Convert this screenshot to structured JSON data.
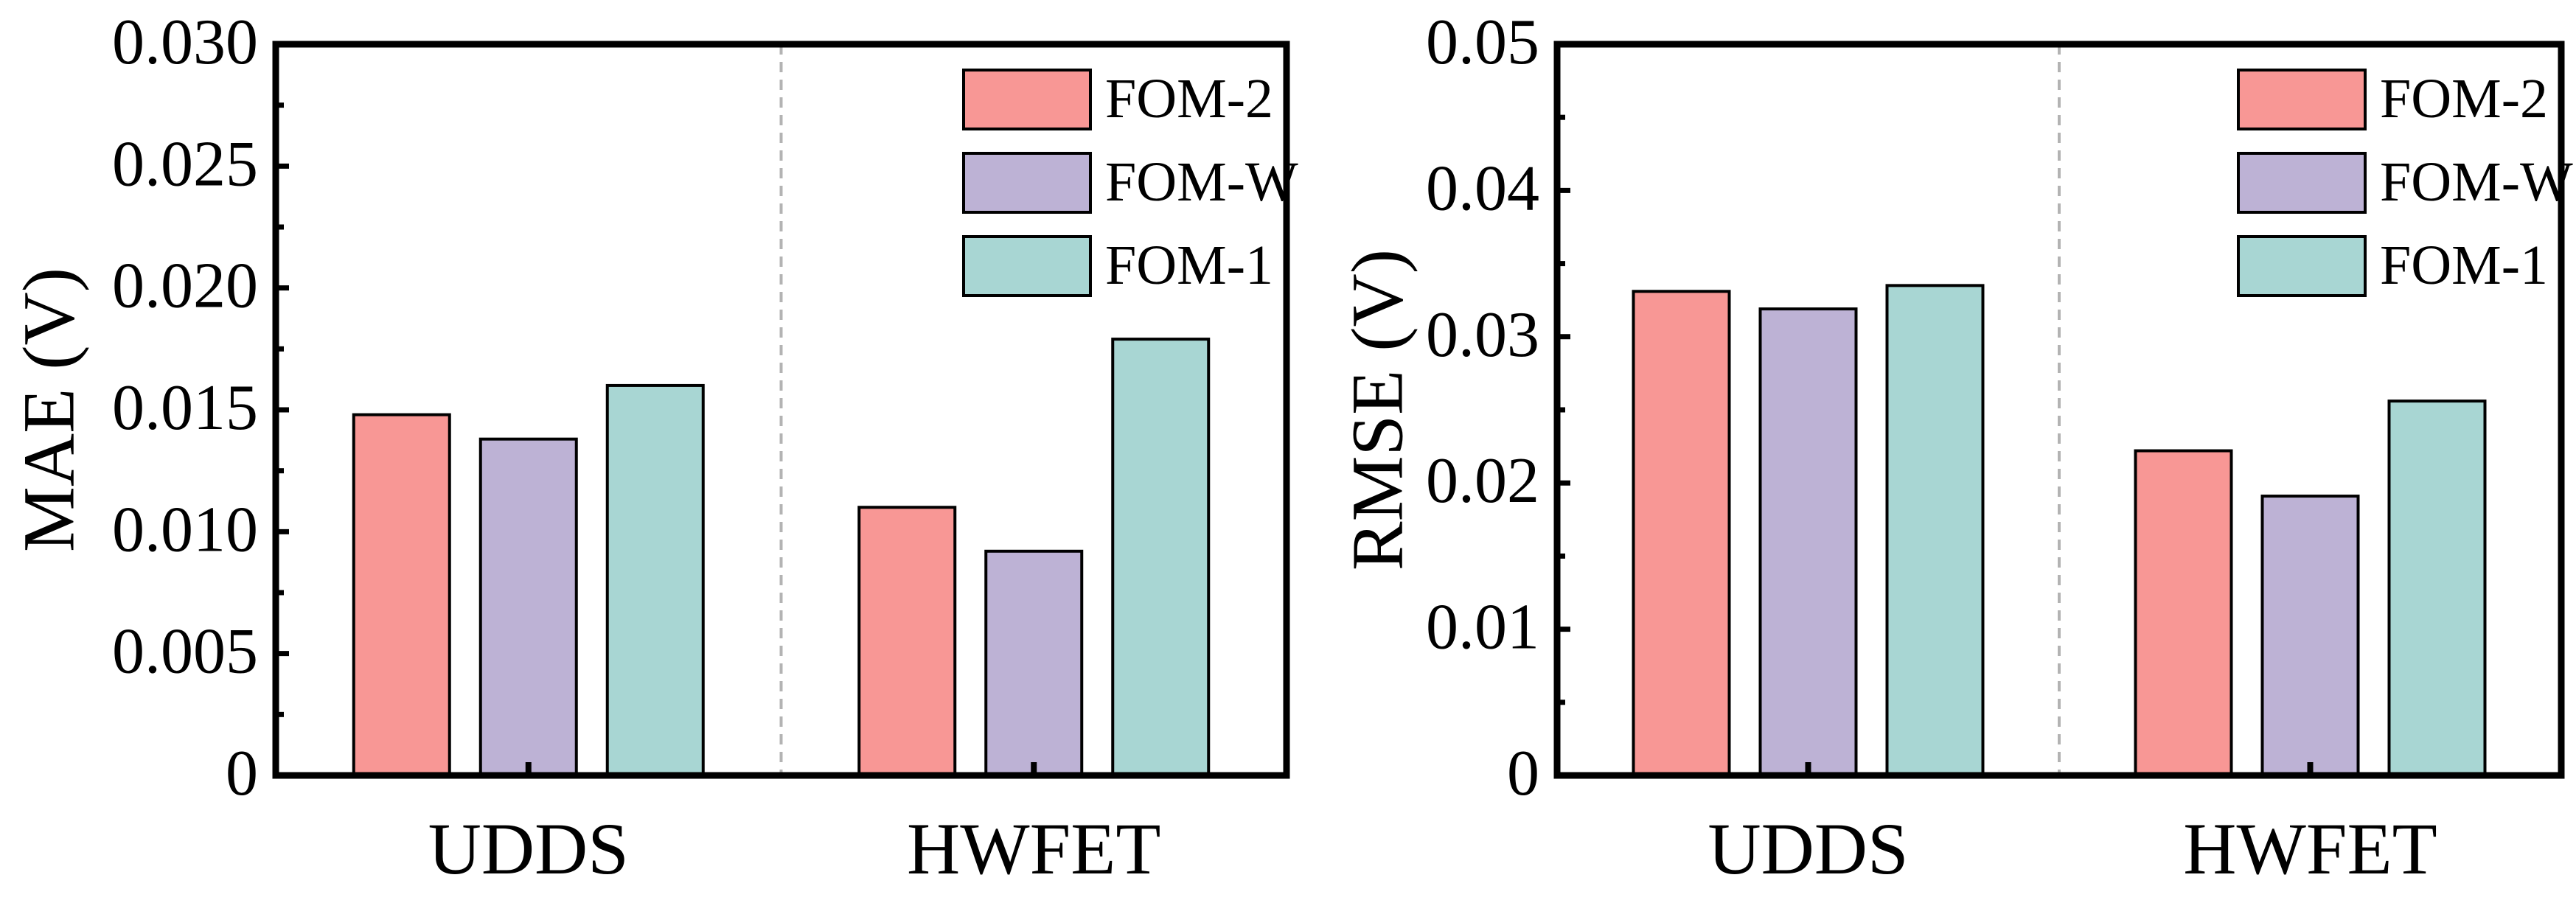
{
  "chart_data": [
    {
      "type": "bar",
      "categories": [
        "UDDS",
        "HWFET"
      ],
      "series": [
        {
          "name": "FOM-2",
          "values": [
            0.0148,
            0.011
          ],
          "color": "#F89795"
        },
        {
          "name": "FOM-W",
          "values": [
            0.0138,
            0.0092
          ],
          "color": "#BDB2D5"
        },
        {
          "name": "FOM-1",
          "values": [
            0.016,
            0.0179
          ],
          "color": "#A8D6D3"
        }
      ],
      "ylabel": "MAE (V)",
      "xlabel": "",
      "ylim": [
        0,
        0.03
      ],
      "yticks": [
        "0",
        "0.005",
        "0.010",
        "0.015",
        "0.020",
        "0.025",
        "0.030"
      ],
      "legend": "top-right",
      "grid": false
    },
    {
      "type": "bar",
      "categories": [
        "UDDS",
        "HWFET"
      ],
      "series": [
        {
          "name": "FOM-2",
          "values": [
            0.0331,
            0.0222
          ],
          "color": "#F89795"
        },
        {
          "name": "FOM-W",
          "values": [
            0.0319,
            0.0191
          ],
          "color": "#BDB2D5"
        },
        {
          "name": "FOM-1",
          "values": [
            0.0335,
            0.0256
          ],
          "color": "#A8D6D3"
        }
      ],
      "ylabel": "RMSE (V)",
      "xlabel": "",
      "ylim": [
        0,
        0.05
      ],
      "yticks": [
        "0",
        "0.01",
        "0.02",
        "0.03",
        "0.04",
        "0.05"
      ],
      "legend": "top-right",
      "grid": false
    }
  ]
}
